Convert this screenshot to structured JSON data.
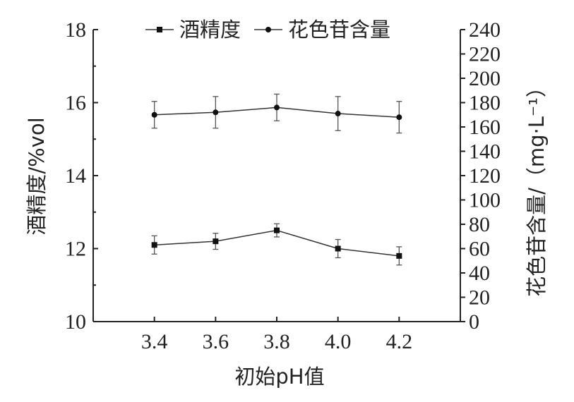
{
  "chart_data": {
    "type": "line",
    "x": [
      3.4,
      3.6,
      3.8,
      4.0,
      4.2
    ],
    "x_tick_labels": [
      "3.4",
      "3.6",
      "3.8",
      "4.0",
      "4.2"
    ],
    "xlabel": "初始pH值",
    "xlim": [
      3.2,
      4.4
    ],
    "ylabel_left": "酒精度/%vol",
    "ylim_left": [
      10,
      18
    ],
    "y_left_ticks": [
      10,
      12,
      14,
      16,
      18
    ],
    "ylabel_right": "花色苷含量/（mg·L⁻¹）",
    "ylim_right": [
      0,
      240
    ],
    "y_right_ticks": [
      0,
      20,
      40,
      60,
      80,
      100,
      120,
      140,
      160,
      180,
      200,
      220,
      240
    ],
    "legend_position": "top",
    "series": [
      {
        "name": "酒精度",
        "axis": "left",
        "marker": "square",
        "values": [
          12.1,
          12.2,
          12.5,
          12.0,
          11.8
        ],
        "errors": [
          0.25,
          0.22,
          0.18,
          0.25,
          0.25
        ]
      },
      {
        "name": "花色苷含量",
        "axis": "right",
        "marker": "circle",
        "values": [
          170,
          172,
          176,
          171,
          168
        ],
        "errors": [
          11,
          13,
          11,
          14,
          13
        ]
      }
    ]
  }
}
